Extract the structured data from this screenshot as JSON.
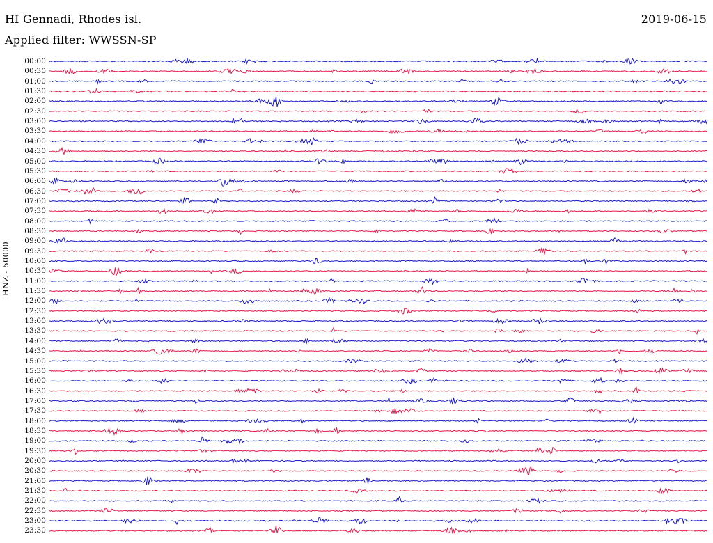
{
  "header": {
    "station": "HI Gennadi, Rhodes isl.",
    "date": "2019-06-15",
    "filter": "Applied filter: WWSSN-SP"
  },
  "axis": {
    "channel_label": "HNZ - 50000"
  },
  "colors": {
    "trace_even": "#1a1acc",
    "trace_odd": "#e8194a",
    "text": "#000000",
    "background": "#ffffff"
  },
  "rows": [
    {
      "time": "00:00"
    },
    {
      "time": "00:30"
    },
    {
      "time": "01:00"
    },
    {
      "time": "01:30"
    },
    {
      "time": "02:00"
    },
    {
      "time": "02:30"
    },
    {
      "time": "03:00"
    },
    {
      "time": "03:30"
    },
    {
      "time": "04:00"
    },
    {
      "time": "04:30"
    },
    {
      "time": "05:00"
    },
    {
      "time": "05:30"
    },
    {
      "time": "06:00"
    },
    {
      "time": "06:30"
    },
    {
      "time": "07:00"
    },
    {
      "time": "07:30"
    },
    {
      "time": "08:00"
    },
    {
      "time": "08:30"
    },
    {
      "time": "09:00"
    },
    {
      "time": "09:30"
    },
    {
      "time": "10:00"
    },
    {
      "time": "10:30"
    },
    {
      "time": "11:00"
    },
    {
      "time": "11:30"
    },
    {
      "time": "12:00"
    },
    {
      "time": "12:30"
    },
    {
      "time": "13:00"
    },
    {
      "time": "13:30"
    },
    {
      "time": "14:00"
    },
    {
      "time": "14:30"
    },
    {
      "time": "15:00"
    },
    {
      "time": "15:30"
    },
    {
      "time": "16:00"
    },
    {
      "time": "16:30"
    },
    {
      "time": "17:00"
    },
    {
      "time": "17:30"
    },
    {
      "time": "18:00"
    },
    {
      "time": "18:30"
    },
    {
      "time": "19:00"
    },
    {
      "time": "19:30"
    },
    {
      "time": "20:00"
    },
    {
      "time": "20:30"
    },
    {
      "time": "21:00"
    },
    {
      "time": "21:30"
    },
    {
      "time": "22:00"
    },
    {
      "time": "22:30"
    },
    {
      "time": "23:00"
    },
    {
      "time": "23:30"
    }
  ]
}
